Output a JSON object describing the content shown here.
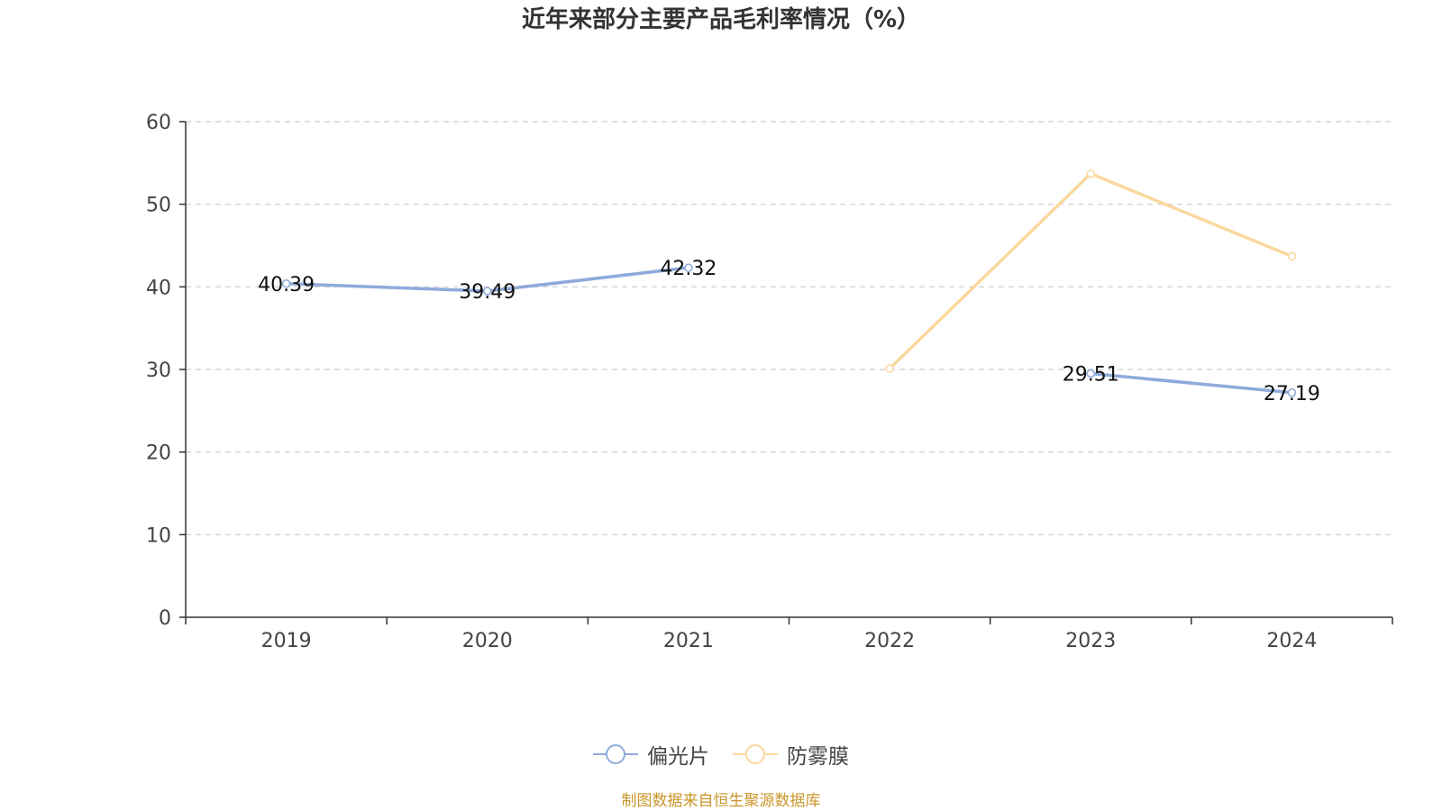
{
  "title": "近年来部分主要产品毛利率情况（%）",
  "source_note": "制图数据来自恒生聚源数据库",
  "colors": {
    "series_1": "#8eaadb",
    "series_2": "#fad89e",
    "source_note": "#c9962a",
    "axis": "#333333",
    "grid": "#cccccc"
  },
  "chart_data": {
    "type": "line",
    "title": "近年来部分主要产品毛利率情况（%）",
    "categories": [
      "2019",
      "2020",
      "2021",
      "2022",
      "2023",
      "2024"
    ],
    "ylim": [
      0,
      60
    ],
    "yticks": [
      "0",
      "10",
      "20",
      "30",
      "40",
      "50",
      "60"
    ],
    "grid": "horizontal-dashed",
    "legend_position": "bottom-center",
    "series": [
      {
        "name": "偏光片",
        "values": [
          40.39,
          39.49,
          42.32,
          null,
          29.51,
          27.19
        ],
        "labels": [
          "40.39",
          "39.49",
          "42.32",
          "",
          "29.51",
          "27.19"
        ],
        "show_labels": true
      },
      {
        "name": "防雾膜",
        "values": [
          null,
          null,
          null,
          30.1,
          53.7,
          43.7
        ],
        "show_labels": false
      }
    ]
  }
}
